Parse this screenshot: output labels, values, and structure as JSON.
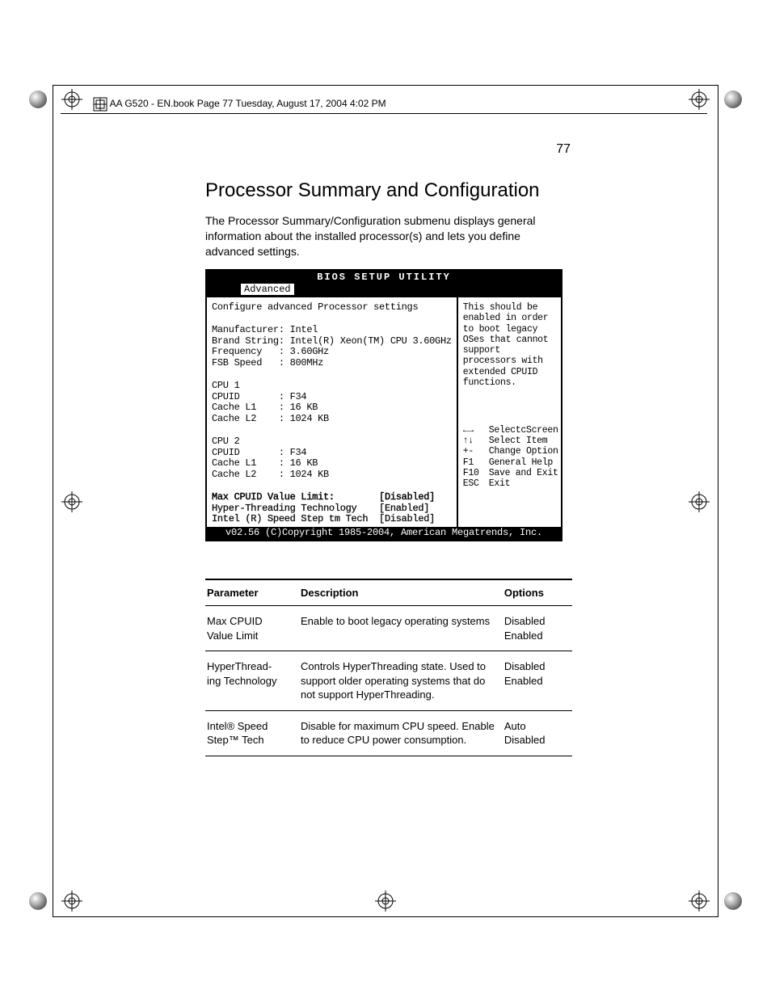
{
  "header_text": "AA G520 - EN.book  Page 77  Tuesday, August 17, 2004  4:02 PM",
  "page_number": "77",
  "heading": "Processor Summary and Configuration",
  "intro": "The  Processor Summary/Configuration submenu displays general information about the installed processor(s) and lets you define advanced settings.",
  "bios": {
    "title": "BIOS SETUP UTILITY",
    "tab": "Advanced",
    "left": {
      "header": "Configure advanced Processor settings",
      "info": [
        "Manufacturer: Intel",
        "Brand String: Intel(R) Xeon(TM) CPU 3.60GHz",
        "Frequency   : 3.60GHz",
        "FSB Speed   : 800MHz"
      ],
      "cpu1": [
        "CPU 1",
        "CPUID       : F34",
        "Cache L1    : 16 KB",
        "Cache L2    : 1024 KB"
      ],
      "cpu2": [
        "CPU 2",
        "CPUID       : F34",
        "Cache L1    : 16 KB",
        "Cache L2    : 1024 KB"
      ],
      "options": [
        {
          "label": "Max CPUID Value Limit:",
          "value": "[Disabled]",
          "selected": true
        },
        {
          "label": "Hyper-Threading Technology",
          "value": "[Enabled]",
          "selected": false
        },
        {
          "label": "Intel (R) Speed Step tm Tech",
          "value": "[Disabled]",
          "selected": false
        }
      ]
    },
    "right": {
      "help": "This should be enabled in order to boot legacy OSes that cannot support processors with extended CPUID functions.",
      "nav": [
        {
          "key": "←→",
          "label": "SelectcScreen"
        },
        {
          "key": "↑↓",
          "label": "Select Item"
        },
        {
          "key": "+-",
          "label": "Change Option"
        },
        {
          "key": "F1",
          "label": "General Help"
        },
        {
          "key": "F10",
          "label": "Save and Exit"
        },
        {
          "key": "ESC",
          "label": "Exit"
        }
      ]
    },
    "footer": "v02.56 (C)Copyright 1985-2004, American Megatrends, Inc."
  },
  "table": {
    "columns": [
      "Parameter",
      "Description",
      "Options"
    ],
    "rows": [
      {
        "param": "Max CPUID Value Limit",
        "desc": "Enable to boot legacy operating systems",
        "options": "Disabled\nEnabled"
      },
      {
        "param": "HyperThread-ing Technology",
        "desc": "Controls HyperThreading state. Used to support older operating systems that do not support HyperThreading.",
        "options": "Disabled\nEnabled"
      },
      {
        "param": "Intel® Speed Step™ Tech",
        "desc": "Disable for maximum CPU speed. Enable to reduce CPU power consumption.",
        "options": "Auto\nDisabled"
      }
    ]
  }
}
